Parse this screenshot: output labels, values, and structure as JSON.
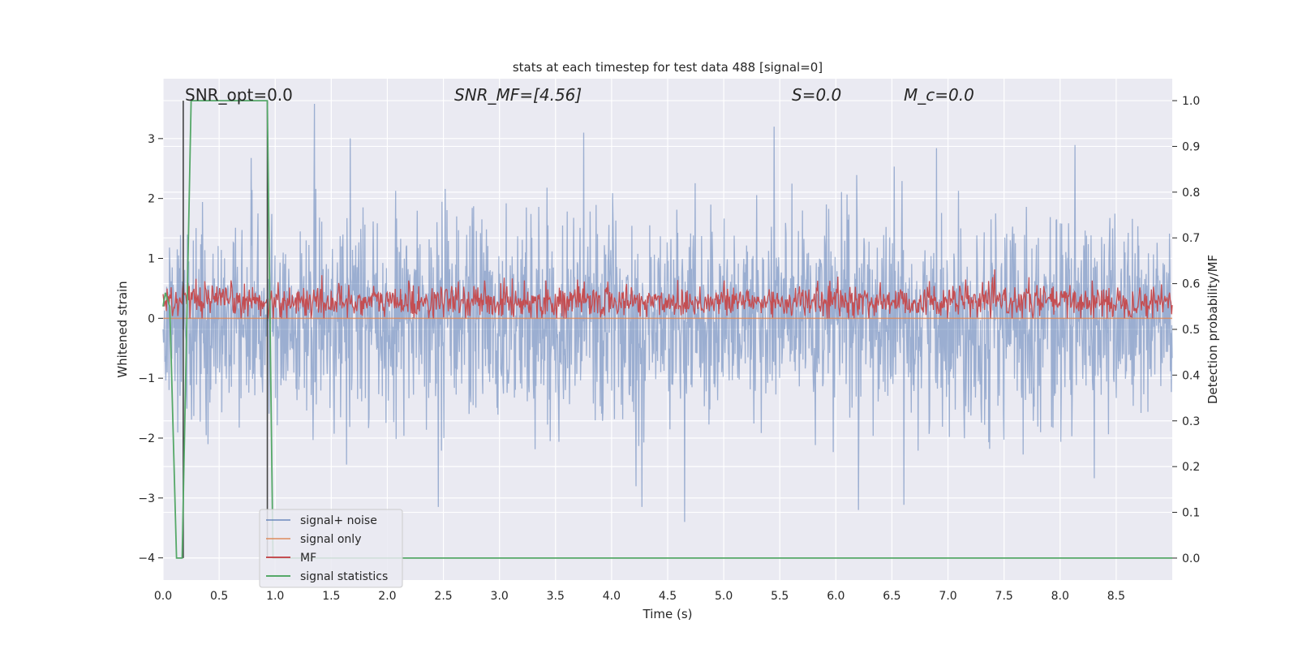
{
  "chart_data": {
    "type": "line",
    "title": "stats at each timestep for test data 488 [signal=0]",
    "xlabel": "Time (s)",
    "ylabel": "Whitened strain",
    "y2label": "Detection probability/MF",
    "xlim": [
      0.0,
      9.0
    ],
    "ylim": [
      -4.37,
      4.0
    ],
    "y2lim": [
      -0.048,
      1.048
    ],
    "x_ticks": [
      "0.0",
      "0.5",
      "1.0",
      "1.5",
      "2.0",
      "2.5",
      "3.0",
      "3.5",
      "4.0",
      "4.5",
      "5.0",
      "5.5",
      "6.0",
      "6.5",
      "7.0",
      "7.5",
      "8.0",
      "8.5"
    ],
    "y_ticks": [
      "3",
      "2",
      "1",
      "0",
      "−1",
      "−2",
      "−3",
      "−4"
    ],
    "y2_ticks": [
      "1.0",
      "0.9",
      "0.8",
      "0.7",
      "0.6",
      "0.5",
      "0.4",
      "0.3",
      "0.2",
      "0.1",
      "0.0"
    ],
    "grid": true,
    "legend_position": "lower-left",
    "annotations": {
      "snr_opt": "SNR_opt=0.0",
      "snr_mf": "SNR_MF=[4.56]",
      "s": "S=0.0",
      "mc": "M_c=0.0"
    },
    "series": [
      {
        "name": "signal+ noise",
        "color": "#4c72b0",
        "axis": "left",
        "description_values": "Gaussian-like whitened noise, amplitude mostly within ±2, spikes up to 3.6 near t=1.35 and down to −3.4 near t=4.65",
        "peaks": [
          [
            1.35,
            3.58
          ],
          [
            3.75,
            3.1
          ],
          [
            5.45,
            3.2
          ],
          [
            4.65,
            -3.4
          ],
          [
            4.27,
            -3.15
          ],
          [
            6.2,
            -3.2
          ]
        ]
      },
      {
        "name": "signal only",
        "color": "#dd8452",
        "axis": "left",
        "x": [
          0.0,
          9.0
        ],
        "y": [
          0.0,
          0.0
        ]
      },
      {
        "name": "MF",
        "color": "#c44e52",
        "axis": "left",
        "description_values": "matched filter output oscillating between 0 and about 0.8"
      },
      {
        "name": "signal statistics",
        "color": "#55a868",
        "axis": "right",
        "x": [
          0.0,
          0.02,
          0.06,
          0.12,
          0.17,
          0.25,
          0.93,
          0.98,
          1.0,
          9.0
        ],
        "y": [
          0.55,
          0.58,
          0.55,
          0.0,
          0.0,
          1.0,
          1.0,
          0.0,
          0.0,
          0.0
        ]
      }
    ],
    "vlines": [
      0.18,
      0.93
    ]
  }
}
